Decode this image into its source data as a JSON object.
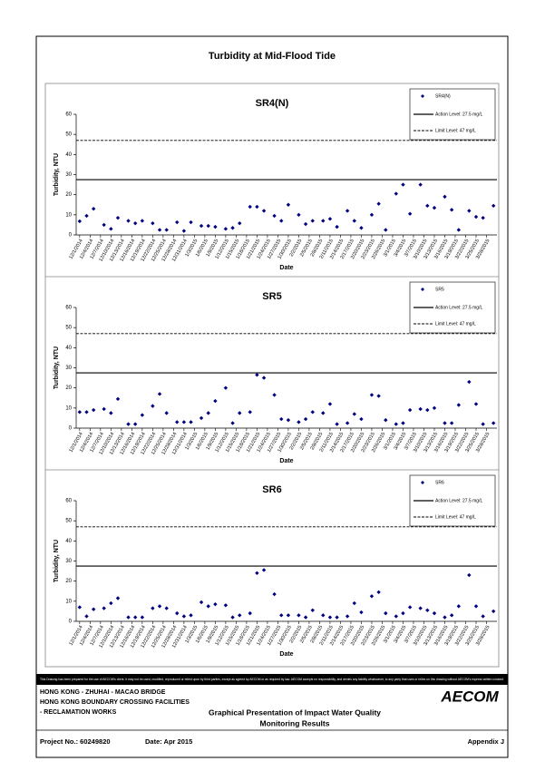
{
  "title": "Turbidity at Mid-Flood Tide",
  "chart_data": [
    {
      "type": "scatter",
      "title": "SR4(N)",
      "xlabel": "Date",
      "ylabel": "Turbidity, NTU",
      "ylim": [
        0,
        60
      ],
      "yticks": [
        0,
        10,
        20,
        30,
        40,
        50,
        60
      ],
      "xlim": [
        "11/30/2014",
        "3/31/2015"
      ],
      "xticks": [
        "12/1/2014",
        "12/4/2014",
        "12/7/2014",
        "12/10/2014",
        "12/13/2014",
        "12/16/2014",
        "12/19/2014",
        "12/22/2014",
        "12/25/2014",
        "12/28/2014",
        "12/31/2014",
        "1/3/2015",
        "1/6/2015",
        "1/9/2015",
        "1/12/2015",
        "1/15/2015",
        "1/18/2015",
        "1/21/2015",
        "1/24/2015",
        "1/27/2015",
        "1/30/2015",
        "2/2/2015",
        "2/5/2015",
        "2/8/2015",
        "2/11/2015",
        "2/14/2015",
        "2/17/2015",
        "2/20/2015",
        "2/23/2015",
        "2/26/2015",
        "3/1/2015",
        "3/4/2015",
        "3/7/2015",
        "3/10/2015",
        "3/13/2015",
        "3/16/2015",
        "3/19/2015",
        "3/22/2015",
        "3/25/2015",
        "3/28/2015"
      ],
      "series": [
        {
          "name": "SR4(N)",
          "color": "#000080",
          "x": [
            "12/1/2014",
            "12/3/2014",
            "12/5/2014",
            "12/8/2014",
            "12/10/2014",
            "12/12/2014",
            "12/15/2014",
            "12/17/2014",
            "12/19/2014",
            "12/22/2014",
            "12/24/2014",
            "12/26/2014",
            "12/29/2014",
            "12/31/2014",
            "1/2/2015",
            "1/5/2015",
            "1/7/2015",
            "1/9/2015",
            "1/12/2015",
            "1/14/2015",
            "1/16/2015",
            "1/19/2015",
            "1/21/2015",
            "1/23/2015",
            "1/26/2015",
            "1/28/2015",
            "1/30/2015",
            "2/2/2015",
            "2/4/2015",
            "2/6/2015",
            "2/9/2015",
            "2/11/2015",
            "2/13/2015",
            "2/16/2015",
            "2/18/2015",
            "2/20/2015",
            "2/23/2015",
            "2/25/2015",
            "2/27/2015",
            "3/2/2015",
            "3/4/2015",
            "3/6/2015",
            "3/9/2015",
            "3/11/2015",
            "3/13/2015",
            "3/16/2015",
            "3/18/2015",
            "3/20/2015",
            "3/23/2015",
            "3/25/2015",
            "3/27/2015",
            "3/30/2015"
          ],
          "values": [
            6.8,
            9.5,
            13,
            5,
            3,
            8.5,
            7,
            5.8,
            7,
            5.8,
            2.5,
            2.5,
            6.3,
            2,
            6.3,
            4.5,
            4.5,
            4,
            3,
            3.5,
            5.8,
            14,
            14,
            12,
            9.5,
            7,
            15,
            10,
            5.4,
            7,
            7,
            8,
            4,
            12,
            7,
            3.5,
            10,
            15.5,
            2.5,
            20.5,
            25,
            10.5,
            25,
            14.5,
            13.5,
            19,
            12.5,
            2.5,
            12,
            9,
            8.5,
            14.5
          ]
        }
      ],
      "reference_lines": [
        {
          "name": "Action Level: 27.5 mg/L",
          "value": 27.5,
          "style": "solid"
        },
        {
          "name": "Limit Level: 47 mg/L",
          "value": 47,
          "style": "dashed"
        }
      ]
    },
    {
      "type": "scatter",
      "title": "SR5",
      "xlabel": "Date",
      "ylabel": "Turbidity, NTU",
      "ylim": [
        0,
        60
      ],
      "yticks": [
        0,
        10,
        20,
        30,
        40,
        50,
        60
      ],
      "xlim": [
        "11/30/2014",
        "3/31/2015"
      ],
      "xticks": [
        "12/1/2014",
        "12/4/2014",
        "12/7/2014",
        "12/10/2014",
        "12/13/2014",
        "12/16/2014",
        "12/19/2014",
        "12/22/2014",
        "12/25/2014",
        "12/28/2014",
        "12/31/2014",
        "1/3/2015",
        "1/6/2015",
        "1/9/2015",
        "1/12/2015",
        "1/15/2015",
        "1/18/2015",
        "1/21/2015",
        "1/24/2015",
        "1/27/2015",
        "1/30/2015",
        "2/2/2015",
        "2/5/2015",
        "2/8/2015",
        "2/11/2015",
        "2/14/2015",
        "2/17/2015",
        "2/20/2015",
        "2/23/2015",
        "2/26/2015",
        "3/1/2015",
        "3/4/2015",
        "3/7/2015",
        "3/10/2015",
        "3/13/2015",
        "3/16/2015",
        "3/19/2015",
        "3/22/2015",
        "3/25/2015",
        "3/28/2015"
      ],
      "series": [
        {
          "name": "SR5",
          "color": "#000080",
          "x": [
            "12/1/2014",
            "12/3/2014",
            "12/5/2014",
            "12/8/2014",
            "12/10/2014",
            "12/12/2014",
            "12/15/2014",
            "12/17/2014",
            "12/19/2014",
            "12/22/2014",
            "12/24/2014",
            "12/26/2014",
            "12/29/2014",
            "12/31/2014",
            "1/2/2015",
            "1/5/2015",
            "1/7/2015",
            "1/9/2015",
            "1/12/2015",
            "1/14/2015",
            "1/16/2015",
            "1/19/2015",
            "1/21/2015",
            "1/23/2015",
            "1/26/2015",
            "1/28/2015",
            "1/30/2015",
            "2/2/2015",
            "2/4/2015",
            "2/6/2015",
            "2/9/2015",
            "2/11/2015",
            "2/13/2015",
            "2/16/2015",
            "2/18/2015",
            "2/20/2015",
            "2/23/2015",
            "2/25/2015",
            "2/27/2015",
            "3/2/2015",
            "3/4/2015",
            "3/6/2015",
            "3/9/2015",
            "3/11/2015",
            "3/13/2015",
            "3/16/2015",
            "3/18/2015",
            "3/20/2015",
            "3/23/2015",
            "3/25/2015",
            "3/27/2015",
            "3/30/2015"
          ],
          "values": [
            8,
            8,
            9,
            9.5,
            7.5,
            14.5,
            2,
            2,
            6.5,
            11,
            17,
            7.5,
            3,
            3,
            3,
            5,
            7.5,
            13.5,
            20,
            2.5,
            7.5,
            8,
            26.5,
            25,
            16.5,
            4.5,
            4,
            3,
            4.5,
            8,
            7.5,
            12,
            2,
            2.5,
            7,
            4.5,
            16.5,
            16,
            4,
            2,
            2.5,
            9,
            9.5,
            9,
            10,
            2.5,
            2.5,
            11.5,
            23,
            12,
            2,
            2.5
          ]
        }
      ],
      "reference_lines": [
        {
          "name": "Action Level: 27.5 mg/L",
          "value": 27.5,
          "style": "solid"
        },
        {
          "name": "Limit Level: 47 mg/L",
          "value": 47,
          "style": "dashed"
        }
      ]
    },
    {
      "type": "scatter",
      "title": "SR6",
      "xlabel": "Date",
      "ylabel": "Turbidity, NTU",
      "ylim": [
        0,
        60
      ],
      "yticks": [
        0,
        10,
        20,
        30,
        40,
        50,
        60
      ],
      "xlim": [
        "11/30/2014",
        "3/31/2015"
      ],
      "xticks": [
        "12/1/2014",
        "12/4/2014",
        "12/7/2014",
        "12/10/2014",
        "12/13/2014",
        "12/16/2014",
        "12/19/2014",
        "12/22/2014",
        "12/25/2014",
        "12/28/2014",
        "12/31/2014",
        "1/3/2015",
        "1/6/2015",
        "1/9/2015",
        "1/12/2015",
        "1/15/2015",
        "1/18/2015",
        "1/21/2015",
        "1/24/2015",
        "1/27/2015",
        "1/30/2015",
        "2/2/2015",
        "2/5/2015",
        "2/8/2015",
        "2/11/2015",
        "2/14/2015",
        "2/17/2015",
        "2/20/2015",
        "2/23/2015",
        "2/26/2015",
        "3/1/2015",
        "3/4/2015",
        "3/7/2015",
        "3/10/2015",
        "3/13/2015",
        "3/16/2015",
        "3/19/2015",
        "3/22/2015",
        "3/25/2015",
        "3/28/2015"
      ],
      "series": [
        {
          "name": "SR6",
          "color": "#000080",
          "x": [
            "12/1/2014",
            "12/3/2014",
            "12/5/2014",
            "12/8/2014",
            "12/10/2014",
            "12/12/2014",
            "12/15/2014",
            "12/17/2014",
            "12/19/2014",
            "12/22/2014",
            "12/24/2014",
            "12/26/2014",
            "12/29/2014",
            "12/31/2014",
            "1/2/2015",
            "1/5/2015",
            "1/7/2015",
            "1/9/2015",
            "1/12/2015",
            "1/14/2015",
            "1/16/2015",
            "1/19/2015",
            "1/21/2015",
            "1/23/2015",
            "1/26/2015",
            "1/28/2015",
            "1/30/2015",
            "2/2/2015",
            "2/4/2015",
            "2/6/2015",
            "2/9/2015",
            "2/11/2015",
            "2/13/2015",
            "2/16/2015",
            "2/18/2015",
            "2/20/2015",
            "2/23/2015",
            "2/25/2015",
            "2/27/2015",
            "3/2/2015",
            "3/4/2015",
            "3/6/2015",
            "3/9/2015",
            "3/11/2015",
            "3/13/2015",
            "3/16/2015",
            "3/18/2015",
            "3/20/2015",
            "3/23/2015",
            "3/25/2015",
            "3/27/2015",
            "3/30/2015"
          ],
          "values": [
            7,
            2.5,
            6,
            6.5,
            9,
            11.5,
            2,
            2,
            2,
            6.5,
            7.5,
            6.5,
            4,
            2.5,
            3,
            9.5,
            7.5,
            8.5,
            8,
            2,
            3,
            4,
            24,
            25.5,
            13.5,
            3,
            3,
            3,
            2,
            5.5,
            3,
            2,
            2,
            2.5,
            9,
            4.5,
            12.5,
            14.5,
            4,
            2.5,
            4,
            7,
            6.5,
            5.5,
            4,
            2,
            3,
            7.5,
            23,
            7.5,
            2.5,
            5
          ]
        }
      ],
      "reference_lines": [
        {
          "name": "Action Level: 27.5 mg/L",
          "value": 27.5,
          "style": "solid"
        },
        {
          "name": "Limit Level: 47 mg/L",
          "value": 47,
          "style": "dashed"
        }
      ]
    }
  ],
  "footer": {
    "disclaimer": "This Drawing has been prepared for the use of AECOM's client. It may not be used, modified, reproduced or relied upon by third parties, except as agreed by AECOM or as required by law. AECOM accepts no responsibility, and denies any liability whatsoever, to any party that uses or relies on this drawing without AECOM's express written consent.",
    "project_lines": [
      "HONG KONG - ZHUHAI - MACAO BRIDGE",
      "HONG KONG BOUNDARY CROSSING FACILITIES",
      "- RECLAMATION WORKS"
    ],
    "logo": "AECOM",
    "drawing_title": [
      "Graphical Presentation of Impact Water Quality",
      "Monitoring Results"
    ],
    "project_no": "Project No.: 60249820",
    "date": "Date: Apr 2015",
    "appendix": "Appendix J"
  }
}
